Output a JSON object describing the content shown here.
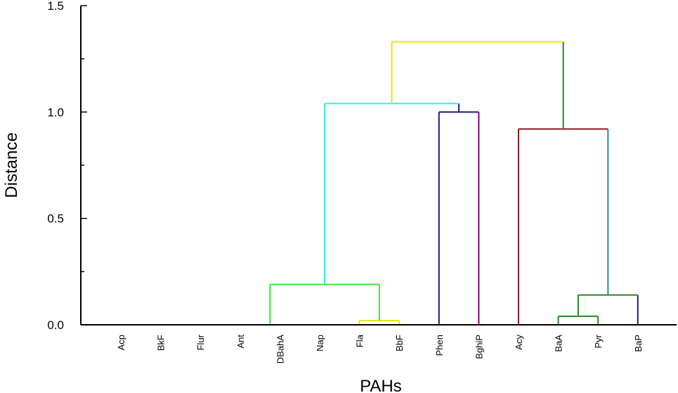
{
  "chart_data": {
    "type": "dendrogram",
    "ylabel": "Distance",
    "xlabel": "PAHs",
    "ylim": [
      0,
      1.5
    ],
    "y_ticks": [
      {
        "value": 0.0,
        "label": "0.0"
      },
      {
        "value": 0.5,
        "label": "0.5"
      },
      {
        "value": 1.0,
        "label": "1.0"
      },
      {
        "value": 1.5,
        "label": "1.5"
      }
    ],
    "y_minor_ticks": [
      0.25,
      0.75,
      1.25
    ],
    "leaves": [
      "Acp",
      "BkF",
      "Flur",
      "Ant",
      "DBahA",
      "Nap",
      "Fla",
      "BbF",
      "Phen",
      "BghiP",
      "Acy",
      "BaA",
      "Pyr",
      "BaP"
    ],
    "merges": [
      {
        "id": "m1",
        "children": [
          "Acp",
          "BkF"
        ],
        "height": 0.0,
        "color": "#808080"
      },
      {
        "id": "m2",
        "children": [
          "m1",
          "Flur"
        ],
        "height": 0.0,
        "color": "#808080"
      },
      {
        "id": "m3",
        "children": [
          "DBahA",
          "Nap"
        ],
        "height": 0.0,
        "color": "#404040"
      },
      {
        "id": "m4",
        "children": [
          "Ant",
          "m3"
        ],
        "height": 0.0,
        "color": "#404040"
      },
      {
        "id": "m5",
        "children": [
          "Fla",
          "BbF"
        ],
        "height": 0.02,
        "color": "#e6e600"
      },
      {
        "id": "m6",
        "children": [
          "m4",
          "m5"
        ],
        "height": 0.19,
        "color": "#33ee33"
      },
      {
        "id": "m7",
        "children": [
          "Phen",
          "BghiP"
        ],
        "height": 1.0,
        "color": "#1a1a80"
      },
      {
        "id": "m8",
        "children": [
          "m6",
          "m7"
        ],
        "height": 1.04,
        "color": "#33eeee"
      },
      {
        "id": "m9",
        "children": [
          "BaA",
          "Pyr"
        ],
        "height": 0.04,
        "color": "#228b22"
      },
      {
        "id": "m10",
        "children": [
          "m9",
          "BaP"
        ],
        "height": 0.14,
        "color": "#228b22"
      },
      {
        "id": "m11",
        "children": [
          "Acy",
          "m10"
        ],
        "height": 0.92,
        "color": "#8b1a1a"
      },
      {
        "id": "m12",
        "children": [
          "m8",
          "m11"
        ],
        "height": 1.33,
        "color": "#e6e600"
      }
    ],
    "colors": {
      "axis": "#000000",
      "leaf_Ant": "#33ee33",
      "leaf_Fla": "#e6e600",
      "leaf_BbF": "#e6e600",
      "leaf_Phen": "#1a1a80",
      "leaf_BghiP": "#800080",
      "leaf_Acy": "#8b1a1a",
      "leaf_BaA": "#228b22",
      "leaf_Pyr": "#228b22",
      "leaf_BaP": "#1a1a80",
      "m8_right_riser": "#1a1a80",
      "m11_right_riser": "#2e8b8b",
      "m12_right_riser": "#228b22"
    }
  }
}
